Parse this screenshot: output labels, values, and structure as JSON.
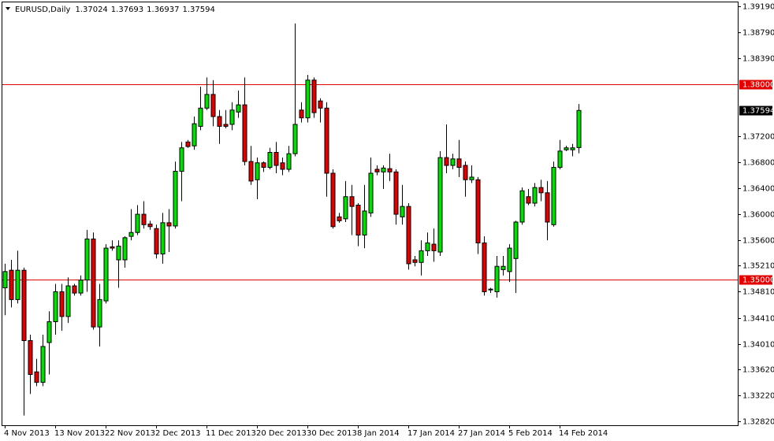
{
  "chart_data": {
    "type": "candlestick",
    "title": "EURUSD,Daily",
    "up_color": "#00e000",
    "down_color": "#e00000",
    "hline_color": "#e00000",
    "categories": [
      "4 Nov 2013",
      null,
      null,
      null,
      null,
      null,
      null,
      null,
      "13 Nov 2013",
      null,
      null,
      null,
      null,
      null,
      null,
      null,
      "22 Nov 2013",
      null,
      null,
      null,
      null,
      null,
      null,
      null,
      "2 Dec 2013",
      null,
      null,
      null,
      null,
      null,
      null,
      null,
      "11 Dec 2013",
      null,
      null,
      null,
      null,
      null,
      null,
      null,
      "20 Dec 2013",
      null,
      null,
      null,
      null,
      null,
      null,
      null,
      "30 Dec 2013",
      null,
      null,
      null,
      null,
      null,
      null,
      null,
      "8 Jan 2014",
      null,
      null,
      null,
      null,
      null,
      null,
      null,
      "17 Jan 2014",
      null,
      null,
      null,
      null,
      null,
      null,
      null,
      "27 Jan 2014",
      null,
      null,
      null,
      null,
      null,
      null,
      null,
      "5 Feb 2014",
      null,
      null,
      null,
      null,
      null,
      null,
      null,
      "14 Feb 2014",
      null,
      null,
      null
    ],
    "open": [
      1.3487,
      1.3514,
      1.3469,
      1.3514,
      1.3406,
      1.3358,
      1.3342,
      1.3403,
      1.3435,
      1.3481,
      1.3443,
      1.349,
      1.3479,
      1.3499,
      1.3562,
      1.3427,
      1.3467,
      1.355,
      1.353,
      1.353,
      1.3566,
      1.3572,
      1.36,
      1.3585,
      1.3578,
      1.3539,
      1.3587,
      1.3582,
      1.3666,
      1.3711,
      1.3705,
      1.3735,
      1.3763,
      1.3784,
      1.375,
      1.3738,
      1.3738,
      1.3757,
      1.3768,
      1.3681,
      1.3653,
      1.3679,
      1.3672,
      1.3695,
      1.3679,
      1.3669,
      1.3693,
      1.376,
      1.3748,
      1.3806,
      1.3774,
      1.3763,
      1.3663,
      1.3596,
      1.3593,
      1.3627,
      1.3614,
      1.3568,
      1.3602,
      1.3669,
      1.3665,
      1.367,
      1.3665,
      1.3596,
      1.3612,
      1.353,
      1.3526,
      1.3544,
      1.3554,
      1.3542,
      1.3687,
      1.3675,
      1.3685,
      1.3675,
      1.3653,
      1.3653,
      1.3556,
      1.3485,
      1.3481,
      1.3515,
      1.3512,
      1.3532,
      1.3588,
      1.3627,
      1.3617,
      1.3641,
      1.3633,
      1.3584,
      1.3672,
      1.3699,
      1.3699,
      1.37024
    ],
    "high": [
      1.3524,
      1.353,
      1.3544,
      1.3518,
      1.3415,
      1.3378,
      1.3415,
      1.3451,
      1.3493,
      1.3493,
      1.3503,
      1.3493,
      1.3506,
      1.3576,
      1.3572,
      1.3493,
      1.3554,
      1.356,
      1.356,
      1.3566,
      1.3608,
      1.3614,
      1.362,
      1.359,
      1.3584,
      1.3602,
      1.3608,
      1.3681,
      1.3711,
      1.3714,
      1.375,
      1.3796,
      1.381,
      1.3806,
      1.376,
      1.376,
      1.3772,
      1.379,
      1.381,
      1.3705,
      1.3687,
      1.3681,
      1.3702,
      1.3711,
      1.3687,
      1.3705,
      1.3893,
      1.3772,
      1.3814,
      1.381,
      1.3778,
      1.3772,
      1.3669,
      1.3602,
      1.3651,
      1.3645,
      1.3617,
      1.3645,
      1.3687,
      1.3675,
      1.3675,
      1.3693,
      1.3669,
      1.3645,
      1.3617,
      1.3536,
      1.356,
      1.3572,
      1.3578,
      1.3697,
      1.3738,
      1.3693,
      1.3714,
      1.3681,
      1.3675,
      1.3657,
      1.3566,
      1.3487,
      1.3536,
      1.3536,
      1.3554,
      1.359,
      1.3641,
      1.3639,
      1.3648,
      1.3653,
      1.3651,
      1.3681,
      1.3714,
      1.3705,
      1.3708,
      1.37693
    ],
    "low": [
      1.3445,
      1.3457,
      1.3463,
      1.3291,
      1.3324,
      1.3336,
      1.3336,
      1.3354,
      1.3415,
      1.3421,
      1.3433,
      1.3475,
      1.3475,
      1.3481,
      1.3423,
      1.3397,
      1.3463,
      1.3544,
      1.3487,
      1.3518,
      1.356,
      1.3568,
      1.3578,
      1.3576,
      1.3532,
      1.3524,
      1.3542,
      1.3578,
      1.362,
      1.3702,
      1.3699,
      1.3729,
      1.376,
      1.3735,
      1.3708,
      1.3732,
      1.3729,
      1.3748,
      1.3675,
      1.3645,
      1.3623,
      1.3665,
      1.3669,
      1.3663,
      1.366,
      1.3665,
      1.3689,
      1.3741,
      1.3741,
      1.3748,
      1.3741,
      1.3627,
      1.3578,
      1.3587,
      1.3588,
      1.3568,
      1.3551,
      1.3548,
      1.3596,
      1.366,
      1.3639,
      1.3651,
      1.3584,
      1.3584,
      1.3515,
      1.352,
      1.3506,
      1.3536,
      1.3527,
      1.3536,
      1.3663,
      1.3669,
      1.3657,
      1.3627,
      1.3648,
      1.3539,
      1.3475,
      1.3479,
      1.3472,
      1.3506,
      1.3496,
      1.3479,
      1.3584,
      1.3614,
      1.3612,
      1.362,
      1.356,
      1.3581,
      1.3669,
      1.3697,
      1.3689,
      1.36937
    ],
    "close": [
      1.3512,
      1.3469,
      1.3514,
      1.3406,
      1.3354,
      1.3342,
      1.3397,
      1.3435,
      1.3481,
      1.3443,
      1.349,
      1.3479,
      1.3499,
      1.3562,
      1.3427,
      1.3469,
      1.3548,
      1.3548,
      1.3551,
      1.3564,
      1.3572,
      1.36,
      1.3584,
      1.3581,
      1.3539,
      1.3587,
      1.3582,
      1.3666,
      1.3702,
      1.3704,
      1.3739,
      1.3763,
      1.3784,
      1.375,
      1.3735,
      1.3735,
      1.376,
      1.3768,
      1.3681,
      1.3651,
      1.3679,
      1.3672,
      1.3695,
      1.3675,
      1.3669,
      1.3693,
      1.3738,
      1.3748,
      1.3806,
      1.3756,
      1.3763,
      1.3663,
      1.3581,
      1.359,
      1.3627,
      1.3612,
      1.3568,
      1.3605,
      1.3663,
      1.3665,
      1.3671,
      1.3665,
      1.36,
      1.3612,
      1.3524,
      1.3526,
      1.3544,
      1.3556,
      1.3544,
      1.3687,
      1.3675,
      1.3685,
      1.3672,
      1.3653,
      1.3657,
      1.3556,
      1.3481,
      1.3484,
      1.352,
      1.352,
      1.3548,
      1.3588,
      1.3636,
      1.3617,
      1.3641,
      1.3633,
      1.3588,
      1.3672,
      1.3697,
      1.3702,
      1.3702,
      1.37594
    ],
    "ylim": [
      1.3276,
      1.3929
    ],
    "yticks": [
      {
        "value": 1.3919,
        "label": "1.39190"
      },
      {
        "value": 1.3879,
        "label": "1.38790"
      },
      {
        "value": 1.3839,
        "label": "1.38390"
      },
      {
        "value": 1.372,
        "label": "1.37200"
      },
      {
        "value": 1.368,
        "label": "1.36800"
      },
      {
        "value": 1.364,
        "label": "1.36400"
      },
      {
        "value": 1.36,
        "label": "1.36000"
      },
      {
        "value": 1.356,
        "label": "1.35600"
      },
      {
        "value": 1.3521,
        "label": "1.35210"
      },
      {
        "value": 1.3481,
        "label": "1.34810"
      },
      {
        "value": 1.3441,
        "label": "1.34410"
      },
      {
        "value": 1.3401,
        "label": "1.34010"
      },
      {
        "value": 1.3362,
        "label": "1.33620"
      },
      {
        "value": 1.3322,
        "label": "1.33220"
      },
      {
        "value": 1.3282,
        "label": "1.32820"
      }
    ],
    "hlines": [
      {
        "value": 1.38,
        "label": "1.38000"
      },
      {
        "value": 1.35,
        "label": "1.35000"
      }
    ]
  }
}
